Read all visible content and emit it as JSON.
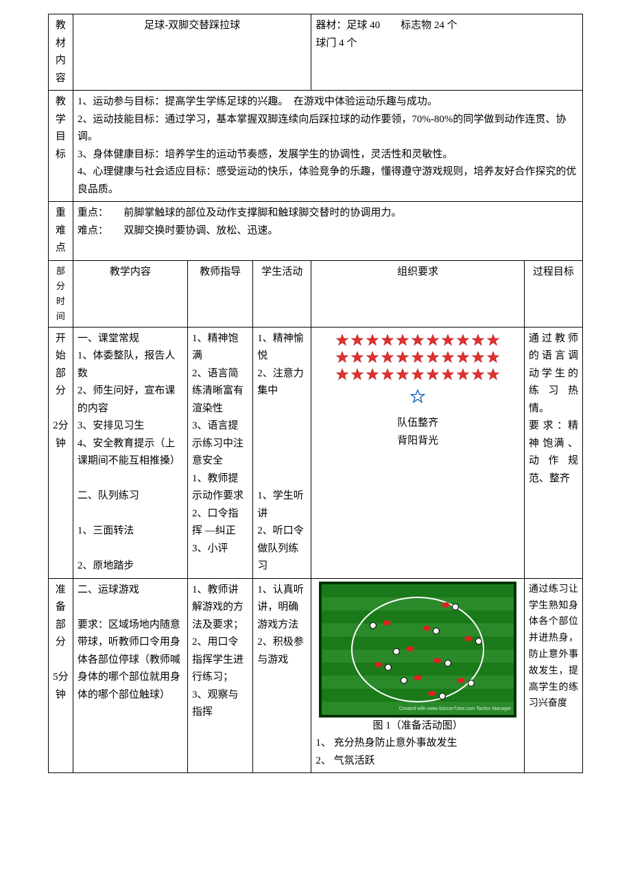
{
  "hdr": {
    "materials": "教材内容",
    "title": "足球-双脚交替踩拉球",
    "equip_label": "器材：足球 40　　标志物 24 个\n球门 4 个",
    "goals_label": "教学目标",
    "goals": "1、运动参与目标：提高学生学练足球的兴趣。　在游戏中体验运动乐趣与成功。\n2、运动技能目标：通过学习，基本掌握双脚连续向后踩拉球的动作要领，70%-80%的同学做到动作连贯、协调。\n3、身体健康目标：培养学生的运动节奏感，发展学生的协调性，灵活性和灵敏性。\n4、心理健康与社会适应目标：感受运动的快乐，体验竞争的乐趣，懂得遵守游戏规则，培养友好合作探究的优良品质。",
    "kd_label": "重难点",
    "kd": "重点：　　前脚掌触球的部位及动作支撑脚和触球脚交替时的协调用力。\n难点：　　双脚交换时要协调、放松、迅速。"
  },
  "cols": {
    "c1": "部分\n时间",
    "c2": "教学内容",
    "c3": "教师指导",
    "c4": "学生活动",
    "c5": "组织要求",
    "c6": "过程目标"
  },
  "row1": {
    "time": "开始部分\n\n2分钟",
    "content": "一、课堂常规\n1、体委整队，报告人数\n2、师生问好，宣布课的内容\n3、安排见习生\n4、安全教育提示（上课期间不能互相推搡）\n\n二、队列练习\n\n1、三面转法\n\n2、原地踏步",
    "teach": "1、精神饱满\n2、语言简练清晰富有渲染性\n3、语言提示练习中注意安全\n1、教师提示动作要求\n2、口令指挥 —纠正\n3、小评",
    "stud": "1、精神愉悦\n2、注意力集中\n\n\n\n\n\n1、学生听讲\n2、听口令做队列练习",
    "org_caption1": "队伍整齐",
    "org_caption2": "背阳背光",
    "goal": "通过教师的语言调动学生的练习热情。\n要 求 ：精 神 饱满 、 动作规范、整齐"
  },
  "row2": {
    "time": "准备部分\n\n5分钟",
    "content": "二、运球游戏\n\n要求：区域场地内随意带球，听教师口令用身体各部位停球（教师喊身体的哪个部位就用身体的哪个部位触球）",
    "teach": "1、教师讲解游戏的方法及要求；\n2、用口令指挥学生进行练习；\n3、观察与指挥",
    "stud": "1、认真听讲，明确游戏方法\n2、积极参与游戏",
    "org_caption": "图 1（准备活动图）",
    "org_list1": "1、 充分热身防止意外事故发生",
    "org_list2": "2、 气氛活跃",
    "goal": "通过练习让学生熟知身体各个部位并进热身，防止意外事故发生，提高学生的练习兴奋度"
  },
  "style": {
    "star_fill": "#e03030",
    "star_stroke": "#a00000",
    "outline_star_stroke": "#1560bd",
    "player_fill": "#e02020",
    "field_caption_color": "#000"
  }
}
